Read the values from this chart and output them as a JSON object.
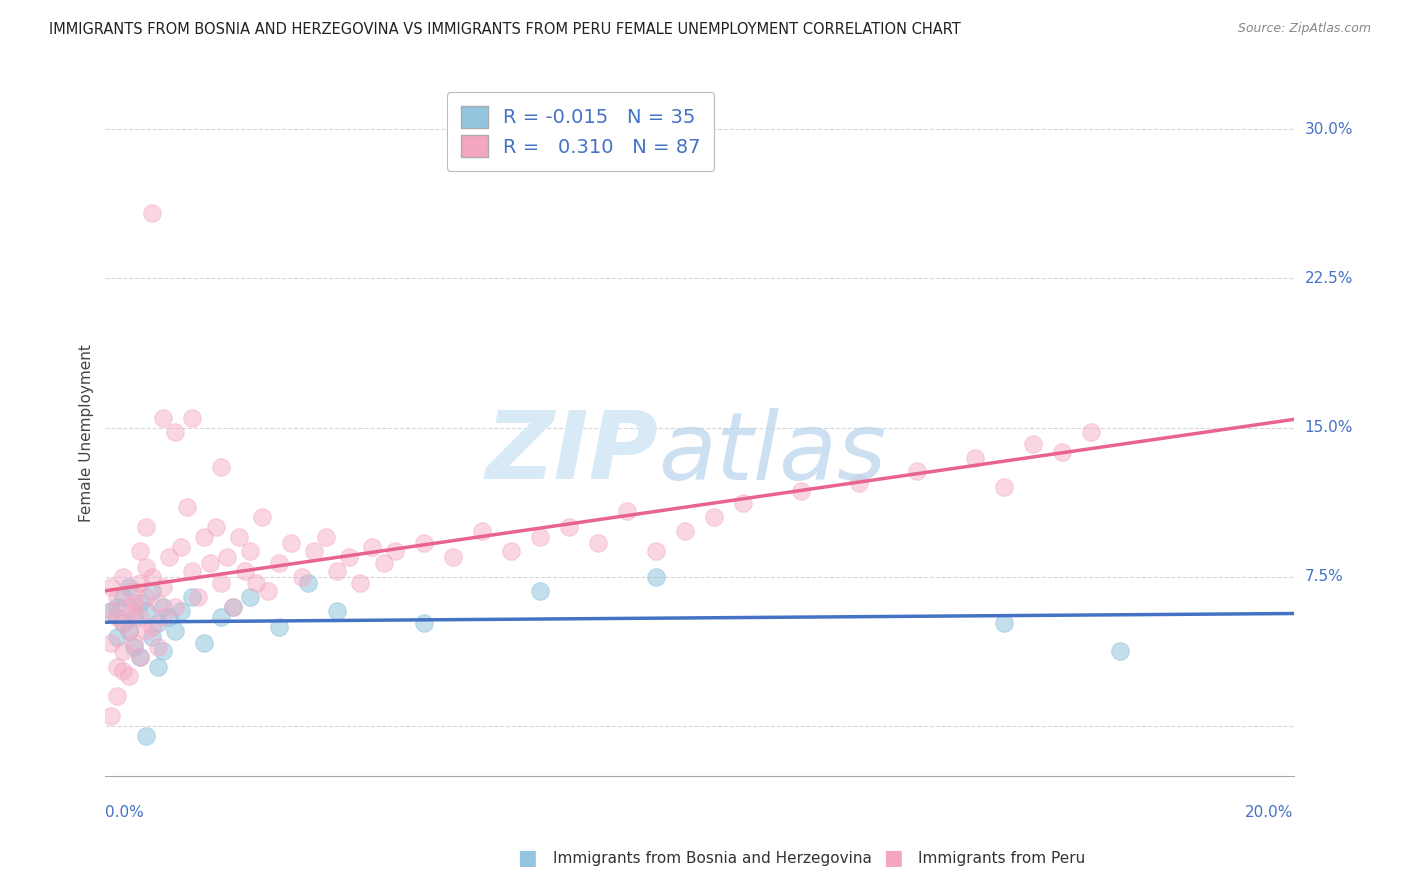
{
  "title": "IMMIGRANTS FROM BOSNIA AND HERZEGOVINA VS IMMIGRANTS FROM PERU FEMALE UNEMPLOYMENT CORRELATION CHART",
  "source": "Source: ZipAtlas.com",
  "ylabel": "Female Unemployment",
  "xlim": [
    0.0,
    0.205
  ],
  "ylim": [
    -0.025,
    0.32
  ],
  "ytick_vals": [
    0.0,
    0.075,
    0.15,
    0.225,
    0.3
  ],
  "ytick_labels": [
    "",
    "7.5%",
    "15.0%",
    "22.5%",
    "30.0%"
  ],
  "legend_r_bosnia": "-0.015",
  "legend_n_bosnia": "35",
  "legend_r_peru": "0.310",
  "legend_n_peru": "87",
  "bosnia_color": "#92c5de",
  "peru_color": "#f4a6c0",
  "bosnia_line_color": "#4472c4",
  "peru_line_color": "#e8648c",
  "grid_color": "#cccccc",
  "bg_color": "#ffffff",
  "bosnia_x": [
    0.001,
    0.002,
    0.002,
    0.003,
    0.003,
    0.004,
    0.004,
    0.005,
    0.005,
    0.006,
    0.006,
    0.007,
    0.007,
    0.008,
    0.008,
    0.009,
    0.009,
    0.01,
    0.01,
    0.011,
    0.012,
    0.013,
    0.015,
    0.017,
    0.02,
    0.022,
    0.025,
    0.03,
    0.035,
    0.04,
    0.055,
    0.075,
    0.095,
    0.155,
    0.175
  ],
  "bosnia_y": [
    0.058,
    0.06,
    0.045,
    0.052,
    0.065,
    0.048,
    0.07,
    0.055,
    0.04,
    0.062,
    0.035,
    0.058,
    -0.005,
    0.045,
    0.068,
    0.052,
    0.03,
    0.06,
    0.038,
    0.055,
    0.048,
    0.058,
    0.065,
    0.042,
    0.055,
    0.06,
    0.065,
    0.05,
    0.072,
    0.058,
    0.052,
    0.068,
    0.075,
    0.052,
    0.038
  ],
  "peru_x": [
    0.001,
    0.001,
    0.001,
    0.002,
    0.002,
    0.002,
    0.003,
    0.003,
    0.003,
    0.004,
    0.004,
    0.004,
    0.005,
    0.005,
    0.005,
    0.006,
    0.006,
    0.006,
    0.007,
    0.007,
    0.007,
    0.008,
    0.008,
    0.009,
    0.009,
    0.01,
    0.01,
    0.011,
    0.012,
    0.012,
    0.013,
    0.014,
    0.015,
    0.016,
    0.017,
    0.018,
    0.019,
    0.02,
    0.021,
    0.022,
    0.023,
    0.024,
    0.025,
    0.026,
    0.027,
    0.028,
    0.03,
    0.032,
    0.034,
    0.036,
    0.038,
    0.04,
    0.042,
    0.044,
    0.046,
    0.048,
    0.05,
    0.055,
    0.06,
    0.065,
    0.07,
    0.075,
    0.08,
    0.085,
    0.09,
    0.095,
    0.1,
    0.105,
    0.11,
    0.12,
    0.13,
    0.14,
    0.15,
    0.155,
    0.16,
    0.165,
    0.17,
    0.015,
    0.02,
    0.008,
    0.01,
    0.005,
    0.006,
    0.007,
    0.003,
    0.002,
    0.001
  ],
  "peru_y": [
    0.058,
    0.042,
    0.07,
    0.055,
    0.065,
    0.03,
    0.052,
    0.075,
    0.038,
    0.06,
    0.048,
    0.025,
    0.068,
    0.058,
    0.042,
    0.072,
    0.055,
    0.035,
    0.065,
    0.048,
    0.08,
    0.075,
    0.05,
    0.062,
    0.04,
    0.07,
    0.055,
    0.085,
    0.06,
    0.148,
    0.09,
    0.11,
    0.078,
    0.065,
    0.095,
    0.082,
    0.1,
    0.072,
    0.085,
    0.06,
    0.095,
    0.078,
    0.088,
    0.072,
    0.105,
    0.068,
    0.082,
    0.092,
    0.075,
    0.088,
    0.095,
    0.078,
    0.085,
    0.072,
    0.09,
    0.082,
    0.088,
    0.092,
    0.085,
    0.098,
    0.088,
    0.095,
    0.1,
    0.092,
    0.108,
    0.088,
    0.098,
    0.105,
    0.112,
    0.118,
    0.122,
    0.128,
    0.135,
    0.12,
    0.142,
    0.138,
    0.148,
    0.155,
    0.13,
    0.258,
    0.155,
    0.062,
    0.088,
    0.1,
    0.028,
    0.015,
    0.005
  ]
}
